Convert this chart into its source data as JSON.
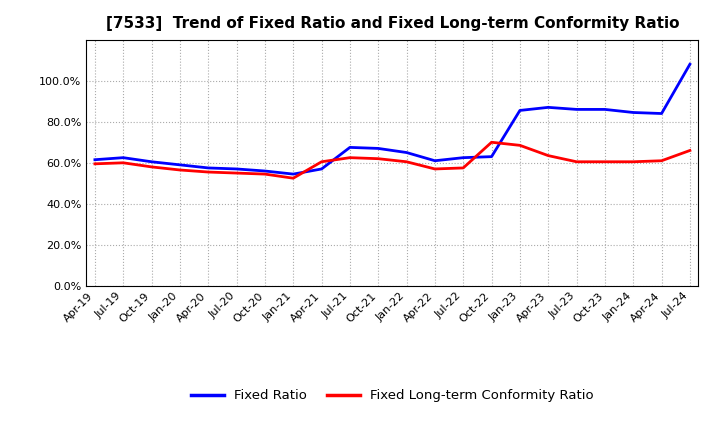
{
  "title": "[7533]  Trend of Fixed Ratio and Fixed Long-term Conformity Ratio",
  "x_labels": [
    "Apr-19",
    "Jul-19",
    "Oct-19",
    "Jan-20",
    "Apr-20",
    "Jul-20",
    "Oct-20",
    "Jan-21",
    "Apr-21",
    "Jul-21",
    "Oct-21",
    "Jan-22",
    "Apr-22",
    "Jul-22",
    "Oct-22",
    "Jan-23",
    "Apr-23",
    "Jul-23",
    "Oct-23",
    "Jan-24",
    "Apr-24",
    "Jul-24"
  ],
  "fixed_ratio": [
    61.5,
    62.5,
    60.5,
    59.0,
    57.5,
    57.0,
    56.0,
    54.5,
    57.0,
    67.5,
    67.0,
    65.0,
    61.0,
    62.5,
    63.0,
    85.5,
    87.0,
    86.0,
    86.0,
    84.5,
    84.0,
    108.0
  ],
  "fixed_lt_ratio": [
    59.5,
    60.0,
    58.0,
    56.5,
    55.5,
    55.0,
    54.5,
    52.5,
    60.5,
    62.5,
    62.0,
    60.5,
    57.0,
    57.5,
    70.0,
    68.5,
    63.5,
    60.5,
    60.5,
    60.5,
    61.0,
    66.0
  ],
  "blue_color": "#0000FF",
  "red_color": "#FF0000",
  "bg_color": "#FFFFFF",
  "grid_color": "#AAAAAA",
  "ylim": [
    0,
    120
  ],
  "yticks": [
    0,
    20,
    40,
    60,
    80,
    100
  ],
  "legend_fixed_ratio": "Fixed Ratio",
  "legend_fixed_lt_ratio": "Fixed Long-term Conformity Ratio"
}
